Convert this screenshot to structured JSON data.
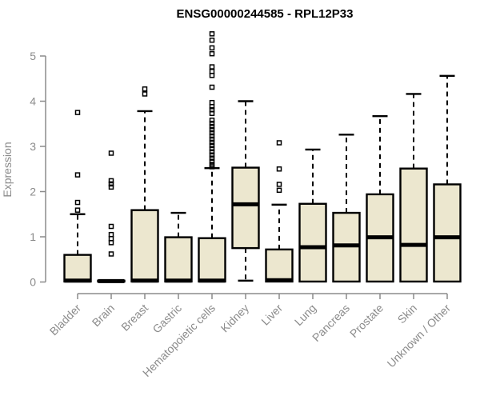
{
  "chart_data": {
    "type": "boxplot",
    "title": "ENSG00000244585 - RPL12P33",
    "ylabel": "Expression",
    "xlabel": "",
    "yticks": [
      0,
      1,
      2,
      3,
      4,
      5
    ],
    "ylim": [
      0,
      5.6
    ],
    "grid": false,
    "legend": "none",
    "categories": [
      "Bladder",
      "Brain",
      "Breast",
      "Gastric",
      "Hematopoietic cells",
      "Kidney",
      "Liver",
      "Lung",
      "Pancreas",
      "Prostate",
      "Skin",
      "Unknown / Other"
    ],
    "series": [
      {
        "name": "Bladder",
        "q1": 0.01,
        "median": 0.03,
        "q3": 0.6,
        "whisker_low": 0.01,
        "whisker_high": 1.5,
        "outliers": [
          1.59,
          1.76,
          2.37,
          3.75
        ]
      },
      {
        "name": "Brain",
        "q1": 0.01,
        "median": 0.02,
        "q3": 0.03,
        "whisker_low": 0.01,
        "whisker_high": 0.03,
        "outliers": [
          0.62,
          0.87,
          0.96,
          1.05,
          1.23,
          2.1,
          2.17,
          2.24,
          2.85
        ]
      },
      {
        "name": "Breast",
        "q1": 0.01,
        "median": 0.03,
        "q3": 1.59,
        "whisker_low": 0.01,
        "whisker_high": 3.78,
        "outliers": [
          4.16,
          4.27
        ]
      },
      {
        "name": "Gastric",
        "q1": 0.01,
        "median": 0.03,
        "q3": 0.99,
        "whisker_low": 0.01,
        "whisker_high": 1.53,
        "outliers": []
      },
      {
        "name": "Hematopoietic cells",
        "q1": 0.01,
        "median": 0.03,
        "q3": 0.97,
        "whisker_low": 0.01,
        "whisker_high": 2.52,
        "outliers": [
          2.55,
          2.6,
          2.67,
          2.74,
          2.81,
          2.88,
          2.95,
          3.02,
          3.09,
          3.16,
          3.23,
          3.3,
          3.37,
          3.44,
          3.51,
          3.58,
          3.73,
          3.81,
          3.88,
          3.97,
          4.31,
          4.57,
          4.66,
          4.76,
          5.05,
          5.18,
          5.35,
          5.49
        ]
      },
      {
        "name": "Kidney",
        "q1": 0.75,
        "median": 1.72,
        "q3": 2.53,
        "whisker_low": 0.03,
        "whisker_high": 4.0,
        "outliers": []
      },
      {
        "name": "Liver",
        "q1": 0.01,
        "median": 0.04,
        "q3": 0.72,
        "whisker_low": 0.01,
        "whisker_high": 1.71,
        "outliers": [
          2.03,
          2.16,
          2.5,
          3.08
        ]
      },
      {
        "name": "Lung",
        "q1": 0.01,
        "median": 0.77,
        "q3": 1.73,
        "whisker_low": 0.01,
        "whisker_high": 2.93,
        "outliers": []
      },
      {
        "name": "Pancreas",
        "q1": 0.01,
        "median": 0.81,
        "q3": 1.53,
        "whisker_low": 0.01,
        "whisker_high": 3.26,
        "outliers": []
      },
      {
        "name": "Prostate",
        "q1": 0.01,
        "median": 0.99,
        "q3": 1.94,
        "whisker_low": 0.01,
        "whisker_high": 3.67,
        "outliers": []
      },
      {
        "name": "Skin",
        "q1": 0.01,
        "median": 0.82,
        "q3": 2.51,
        "whisker_low": 0.01,
        "whisker_high": 4.16,
        "outliers": []
      },
      {
        "name": "Unknown / Other",
        "q1": 0.01,
        "median": 0.99,
        "q3": 2.16,
        "whisker_low": 0.01,
        "whisker_high": 4.56,
        "outliers": []
      }
    ],
    "colors": {
      "box_fill": "#ECE7CF",
      "box_stroke": "#000000",
      "median": "#000000",
      "whisker": "#000000",
      "outlier_stroke": "#000000",
      "axis": "#8b8b8b",
      "tick_label": "#8b8b8b",
      "title": "#000000",
      "background": "#ffffff"
    }
  }
}
